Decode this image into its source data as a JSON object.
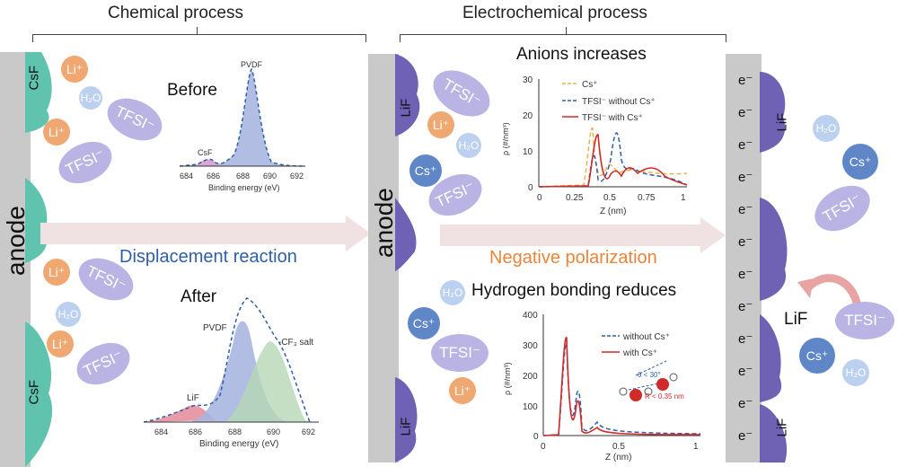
{
  "sections": {
    "chemical": "Chemical process",
    "electrochemical": "Electrochemical process"
  },
  "anode_label": "anode",
  "labels": {
    "before": "Before",
    "after": "After",
    "displacement": "Displacement reaction",
    "negative_polarization": "Negative polarization",
    "anions": "Anions increases",
    "hbond": "Hydrogen bonding reduces",
    "lif_outer": "LiF"
  },
  "layers": {
    "csf": "CsF",
    "lif": "LiF"
  },
  "species": {
    "li": "Li⁺",
    "h2o": "H₂O",
    "tfsi": "TFSI⁻",
    "cs": "Cs⁺",
    "e": "e⁻"
  },
  "xps_before": {
    "peak_pvdf": "PVDF",
    "peak_csf": "CsF",
    "xlabel": "Binding energy (eV)",
    "ticks": [
      "684",
      "686",
      "688",
      "690",
      "692"
    ]
  },
  "xps_after": {
    "peak_pvdf": "PVDF",
    "peak_cf3": "-CF₃ salt",
    "peak_lif": "LiF",
    "xlabel": "Binding energy (eV)",
    "ticks": [
      "684",
      "686",
      "688",
      "690",
      "692"
    ]
  },
  "anion_plot": {
    "ylabel": "ρ (#/nm³)",
    "xlabel": "Z (nm)",
    "yticks": [
      "0",
      "10",
      "20",
      "30"
    ],
    "xticks": [
      "0",
      "0.25",
      "0.5",
      "0.75",
      "1"
    ],
    "legend": [
      "Cs⁺",
      "TFSI⁻ without Cs⁺",
      "TFSI⁻ with Cs⁺"
    ]
  },
  "hb_plot": {
    "ylabel": "ρ (#/nm³)",
    "xlabel": "Z (nm)",
    "yticks": [
      "0",
      "100",
      "200",
      "300",
      "400"
    ],
    "xticks": [
      "0",
      "0.5",
      "1"
    ],
    "legend": [
      "without Cs⁺",
      "with Cs⁺"
    ],
    "ann1": "θ < 30°",
    "ann2": "R < 0.35 nm"
  }
}
